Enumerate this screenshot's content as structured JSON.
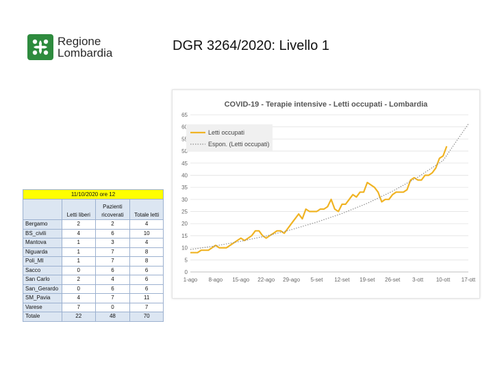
{
  "header": {
    "logo_line1": "Regione",
    "logo_line2": "Lombardia",
    "title": "DGR 3264/2020:  Livello 1"
  },
  "table": {
    "date": "11/10/2020 ore 12",
    "columns": [
      "",
      "Letti liberi",
      "Pazienti ricoverati",
      "Totale letti"
    ],
    "rows": [
      [
        "Bergamo",
        "2",
        "2",
        "4"
      ],
      [
        "BS_civili",
        "4",
        "6",
        "10"
      ],
      [
        "Mantova",
        "1",
        "3",
        "4"
      ],
      [
        "Niguarda",
        "1",
        "7",
        "8"
      ],
      [
        "Poli_MI",
        "1",
        "7",
        "8"
      ],
      [
        "Sacco",
        "0",
        "6",
        "6"
      ],
      [
        "San Carlo",
        "2",
        "4",
        "6"
      ],
      [
        "San_Gerardo",
        "0",
        "6",
        "6"
      ],
      [
        "SM_Pavia",
        "4",
        "7",
        "11"
      ],
      [
        "Varese",
        "7",
        "0",
        "7"
      ]
    ],
    "total": [
      "Totale",
      "22",
      "48",
      "70"
    ]
  },
  "chart_data": {
    "type": "line",
    "title": "COVID-19 - Terapie intensive - Letti occupati - Lombardia",
    "xlabel": "",
    "ylabel": "",
    "ylim": [
      0,
      65
    ],
    "yticks": [
      0,
      5,
      10,
      15,
      20,
      25,
      30,
      35,
      40,
      45,
      50,
      55,
      60,
      65
    ],
    "xlim": [
      0,
      77
    ],
    "xticks": [
      {
        "x": 0,
        "label": "1-ago"
      },
      {
        "x": 7,
        "label": "8-ago"
      },
      {
        "x": 14,
        "label": "15-ago"
      },
      {
        "x": 21,
        "label": "22-ago"
      },
      {
        "x": 28,
        "label": "29-ago"
      },
      {
        "x": 35,
        "label": "5-set"
      },
      {
        "x": 42,
        "label": "12-set"
      },
      {
        "x": 49,
        "label": "19-set"
      },
      {
        "x": 56,
        "label": "26-set"
      },
      {
        "x": 63,
        "label": "3-ott"
      },
      {
        "x": 70,
        "label": "10-ott"
      },
      {
        "x": 77,
        "label": "17-ott"
      }
    ],
    "grid": true,
    "legend_position": "top-left",
    "series": [
      {
        "name": "Letti occupati",
        "color": "#f0b323",
        "style": "solid",
        "x": [
          0,
          1,
          2,
          3,
          4,
          5,
          6,
          7,
          8,
          9,
          10,
          11,
          12,
          13,
          14,
          15,
          16,
          17,
          18,
          19,
          20,
          21,
          22,
          23,
          24,
          25,
          26,
          27,
          28,
          29,
          30,
          31,
          32,
          33,
          34,
          35,
          36,
          37,
          38,
          39,
          40,
          41,
          42,
          43,
          44,
          45,
          46,
          47,
          48,
          49,
          50,
          51,
          52,
          53,
          54,
          55,
          56,
          57,
          58,
          59,
          60,
          61,
          62,
          63,
          64,
          65,
          66,
          67,
          68,
          69,
          70,
          71
        ],
        "values": [
          8,
          8,
          8,
          9,
          9,
          9,
          10,
          11,
          10,
          10,
          10,
          11,
          12,
          13,
          14,
          13,
          14,
          15,
          17,
          17,
          15,
          14,
          15,
          16,
          17,
          17,
          16,
          18,
          20,
          22,
          24,
          22,
          26,
          25,
          25,
          25,
          26,
          26,
          27,
          30,
          26,
          25,
          28,
          28,
          30,
          32,
          31,
          33,
          33,
          37,
          36,
          35,
          33,
          29,
          30,
          30,
          32,
          33,
          33,
          33,
          34,
          38,
          39,
          38,
          38,
          40,
          40,
          41,
          43,
          47,
          48,
          52
        ]
      },
      {
        "name": "Espon. (Letti occupati)",
        "color": "#8c8c8c",
        "style": "dotted",
        "x": [
          0,
          7,
          14,
          21,
          28,
          35,
          42,
          49,
          56,
          63,
          70,
          77
        ],
        "values": [
          9.3,
          10.8,
          12.7,
          14.9,
          17.5,
          20.6,
          24.2,
          28.4,
          33.4,
          39.2,
          46.1,
          61.2
        ]
      }
    ]
  }
}
